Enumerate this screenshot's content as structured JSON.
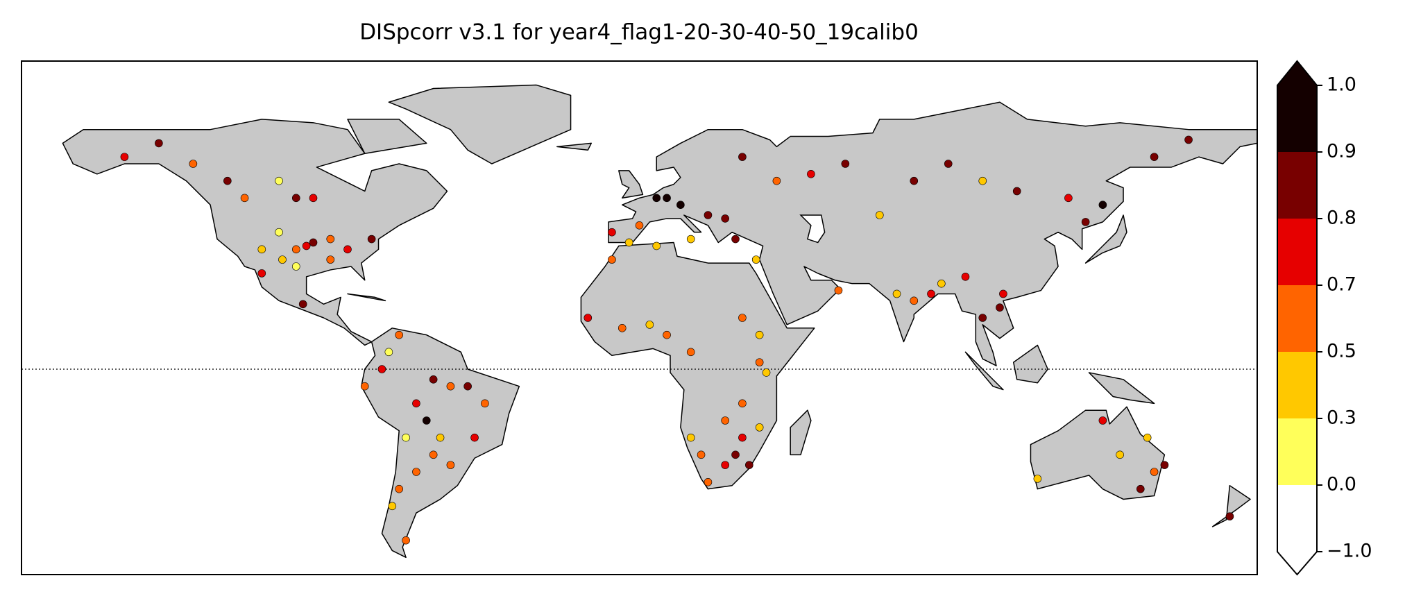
{
  "chart_data": {
    "type": "map-scatter",
    "title": "DISpcorr v3.1 for year4_flag1-20-30-40-50_19calib0",
    "xlim": [
      -180,
      180
    ],
    "ylim": [
      -60,
      90
    ],
    "colorbar": {
      "boundaries": [
        -1,
        0,
        0.3,
        0.5,
        0.7,
        0.8,
        0.9,
        1
      ],
      "colors": [
        "#ffffff",
        "#ffff5a",
        "#ffc800",
        "#ff6400",
        "#e60000",
        "#780000",
        "#140000"
      ],
      "under_color": "#ffffff",
      "over_color": "#140000",
      "ticks": [
        {
          "value": 1,
          "label": "1.0"
        },
        {
          "value": 0.9,
          "label": "0.9"
        },
        {
          "value": 0.8,
          "label": "0.8"
        },
        {
          "value": 0.7,
          "label": "0.7"
        },
        {
          "value": 0.5,
          "label": "0.5"
        },
        {
          "value": 0.3,
          "label": "0.3"
        },
        {
          "value": 0,
          "label": "0.0"
        },
        {
          "value": -1,
          "label": "−1.0"
        }
      ]
    },
    "points": {
      "lon": [
        -95,
        -97,
        -100,
        -105,
        -110,
        -90,
        -85,
        -78,
        -115,
        -120,
        -130,
        -150,
        -140,
        -100,
        -95,
        -105,
        -90,
        -100,
        -104,
        -110,
        -98,
        -70,
        -73,
        -75,
        -60,
        -55,
        -50,
        -65,
        -45,
        -58,
        -60,
        -55,
        -48,
        -65,
        -70,
        -72,
        -68,
        -80,
        -62,
        -68,
        5,
        8,
        12,
        20,
        25,
        -8,
        -3,
        0,
        15,
        28,
        40,
        50,
        30,
        60,
        80,
        100,
        110,
        125,
        135,
        130,
        160,
        150,
        90,
        70,
        75,
        80,
        85,
        88,
        100,
        105,
        106,
        95,
        58,
        -15,
        -5,
        3,
        8,
        15,
        30,
        35,
        35,
        37,
        30,
        25,
        30,
        28,
        25,
        20,
        15,
        18,
        32,
        35,
        -8,
        5,
        34,
        150,
        146,
        140,
        135,
        116,
        153,
        148,
        172
      ],
      "lat": [
        37,
        36,
        35,
        40,
        35,
        38,
        35,
        38,
        50,
        55,
        60,
        62,
        66,
        50,
        50,
        55,
        32,
        30,
        32,
        28,
        19,
        10,
        5,
        0,
        -3,
        -5,
        -5,
        -10,
        -10,
        -20,
        -25,
        -28,
        -20,
        -30,
        -35,
        -40,
        -20,
        -5,
        -15,
        -50,
        50,
        50,
        48,
        45,
        44,
        40,
        37,
        42,
        38,
        38,
        55,
        57,
        62,
        60,
        55,
        55,
        52,
        50,
        48,
        43,
        67,
        62,
        60,
        45,
        22,
        20,
        22,
        25,
        15,
        18,
        22,
        27,
        23,
        15,
        12,
        13,
        10,
        5,
        15,
        10,
        2,
        -1,
        -10,
        -15,
        -20,
        -25,
        -28,
        -33,
        -20,
        -25,
        -28,
        -17,
        32,
        36,
        32,
        -30,
        -35,
        -25,
        -15,
        -32,
        -28,
        -20,
        -43
      ],
      "values": [
        0.85,
        0.75,
        0.6,
        0.25,
        0.4,
        0.6,
        0.75,
        0.85,
        0.55,
        0.85,
        0.65,
        0.75,
        0.8,
        0.85,
        0.75,
        0.25,
        0.65,
        0.25,
        0.4,
        0.7,
        0.8,
        0.5,
        0.25,
        0.7,
        0.8,
        0.65,
        0.85,
        0.75,
        0.65,
        0.4,
        0.55,
        0.6,
        0.75,
        0.65,
        0.55,
        0.3,
        0.25,
        0.55,
        0.9,
        0.55,
        0.95,
        0.95,
        0.95,
        0.85,
        0.85,
        0.75,
        0.45,
        0.6,
        0.35,
        0.85,
        0.65,
        0.7,
        0.8,
        0.85,
        0.8,
        0.4,
        0.8,
        0.7,
        0.9,
        0.85,
        0.85,
        0.85,
        0.8,
        0.35,
        0.35,
        0.55,
        0.75,
        0.45,
        0.85,
        0.8,
        0.75,
        0.7,
        0.5,
        0.75,
        0.5,
        0.3,
        0.65,
        0.55,
        0.65,
        0.45,
        0.5,
        0.45,
        0.6,
        0.55,
        0.75,
        0.85,
        0.7,
        0.65,
        0.35,
        0.6,
        0.85,
        0.4,
        0.65,
        0.3,
        0.4,
        0.65,
        0.85,
        0.3,
        0.75,
        0.35,
        0.8,
        0.3,
        0.85
      ]
    }
  }
}
